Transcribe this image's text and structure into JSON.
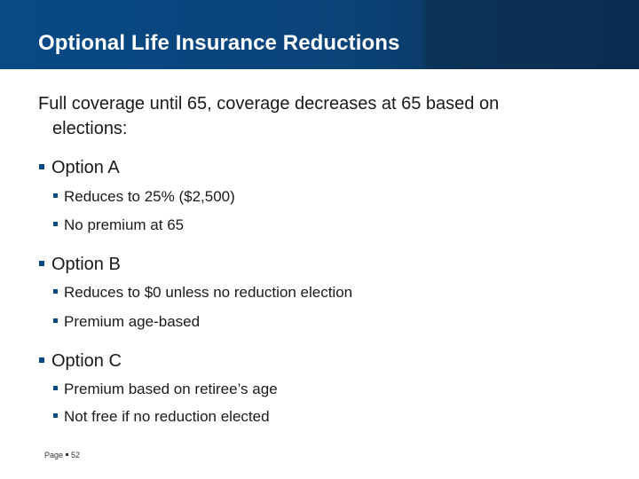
{
  "slide": {
    "title": "Optional Life Insurance Reductions",
    "intro_line1": "Full coverage until 65, coverage decreases at 65 based on",
    "intro_line2": "elections:",
    "options": [
      {
        "label": "Option A",
        "points": [
          "Reduces to 25% ($2,500)",
          "No premium at 65"
        ]
      },
      {
        "label": "Option B",
        "points": [
          "Reduces to $0 unless no reduction election",
          "Premium age-based"
        ]
      },
      {
        "label": "Option C",
        "points": [
          "Premium based on retiree’s age",
          "Not free if no reduction elected"
        ]
      }
    ],
    "footer": {
      "page_label": "Page",
      "page_number": "52"
    }
  },
  "colors": {
    "header": "#074a86",
    "bullet": "#074a86",
    "title_text": "#ffffff",
    "body_text": "#1a1a1a"
  }
}
